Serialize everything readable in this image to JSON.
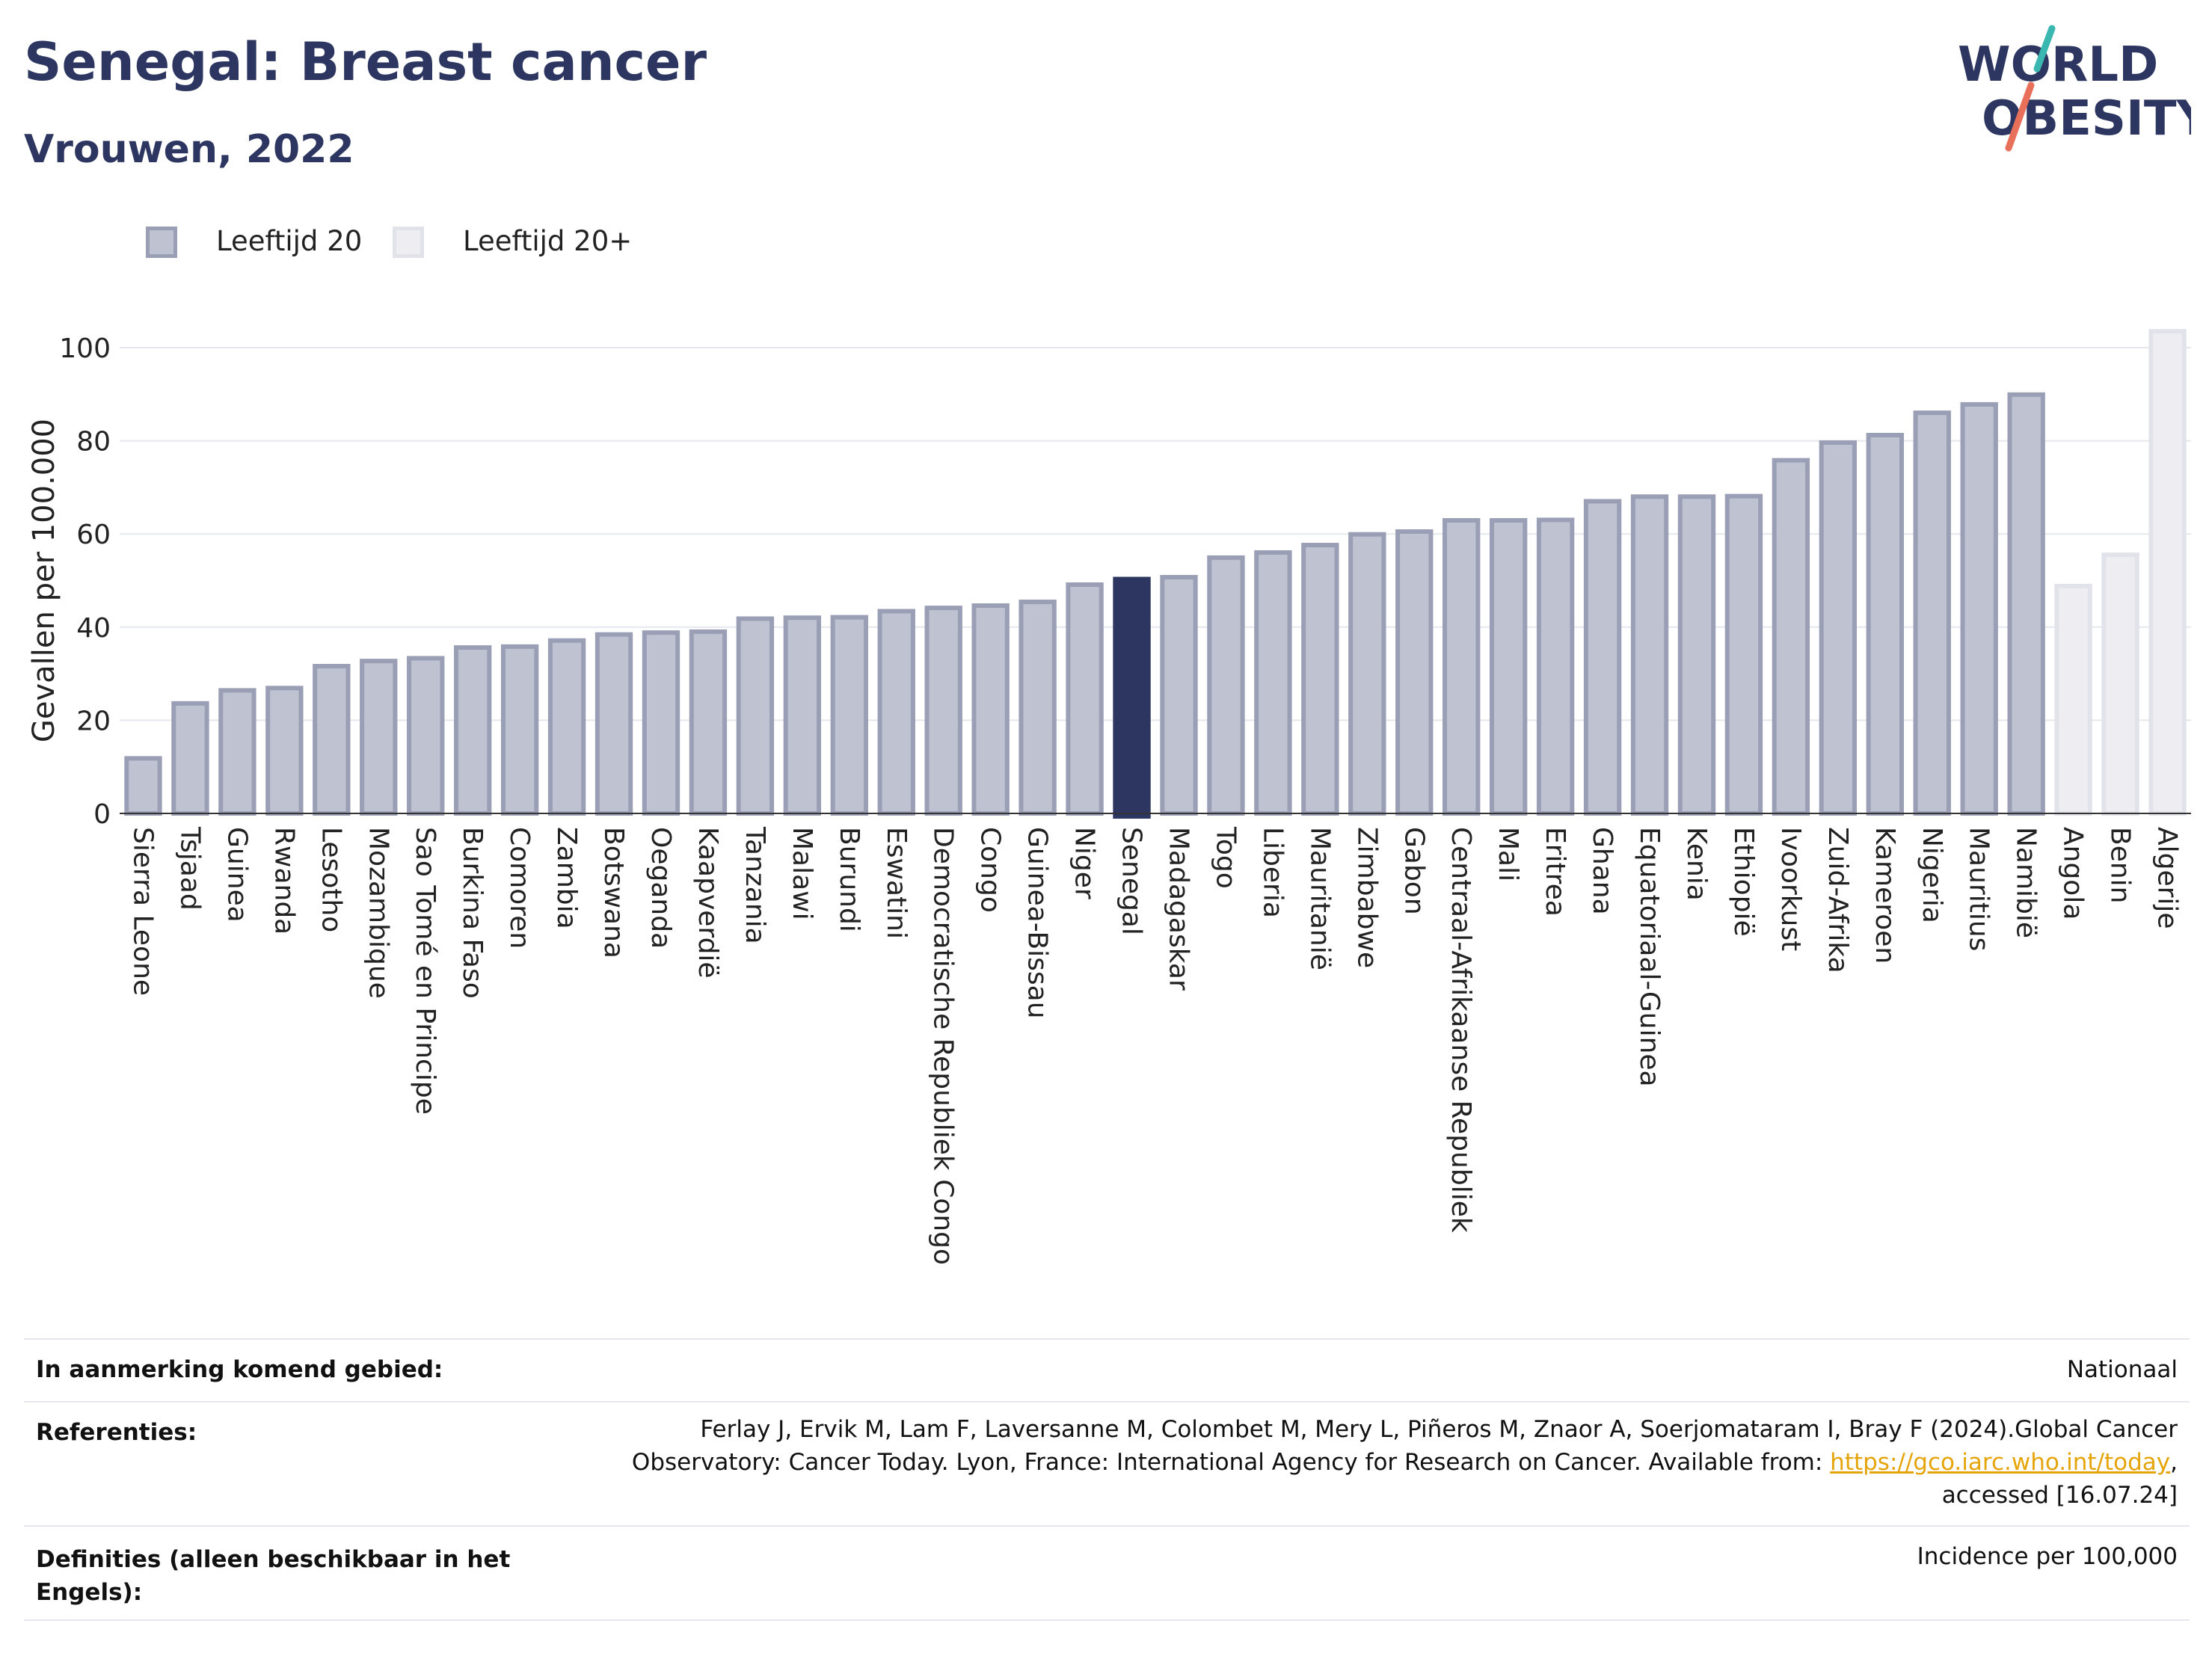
{
  "header": {
    "title": "Senegal: Breast cancer",
    "subtitle": "Vrouwen, 2022"
  },
  "logo": {
    "line1": "WORLD",
    "line2": "OBESITY",
    "accent1": "#3ab7b0",
    "accent2": "#e8705a"
  },
  "colors": {
    "bar_default": "#bfc2d0",
    "bar_default_border": "#9a9fb6",
    "bar_highlight": "#2c3660",
    "bar_light": "#eeeef2",
    "bar_light_border": "#e2e3ea",
    "text_dark": "#2c3660"
  },
  "legend": {
    "items": [
      {
        "label": "Leeftijd 20",
        "color": "#bfc2d0",
        "border": "#9a9fb6"
      },
      {
        "label": "Leeftijd 20+",
        "color": "#eeeef2",
        "border": "#e2e3ea"
      }
    ]
  },
  "chart_data": {
    "type": "bar",
    "ylabel": "Gevallen per 100.000",
    "ylim": [
      0,
      105
    ],
    "yticks": [
      0,
      20,
      40,
      60,
      80,
      100
    ],
    "grid": true,
    "highlight": "Senegal",
    "categories": [
      "Sierra Leone",
      "Tsjaad",
      "Guinea",
      "Rwanda",
      "Lesotho",
      "Mozambique",
      "Sao Tomé en Principe",
      "Burkina Faso",
      "Comoren",
      "Zambia",
      "Botswana",
      "Oeganda",
      "Kaapverdië",
      "Tanzania",
      "Malawi",
      "Burundi",
      "Eswatini",
      "Democratische Republiek Congo",
      "Congo",
      "Guinea-Bissau",
      "Niger",
      "Senegal",
      "Madagaskar",
      "Togo",
      "Liberia",
      "Mauritanië",
      "Zimbabwe",
      "Gabon",
      "Centraal-Afrikaanse Republiek",
      "Mali",
      "Eritrea",
      "Ghana",
      "Equatoriaal-Guinea",
      "Kenia",
      "Ethiopië",
      "Ivoorkust",
      "Zuid-Afrika",
      "Kameroen",
      "Nigeria",
      "Mauritius",
      "Namibië",
      "Angola",
      "Benin",
      "Algerije"
    ],
    "values": [
      12.3,
      24.1,
      26.9,
      27.4,
      32.1,
      33.2,
      33.8,
      36.1,
      36.3,
      37.6,
      38.9,
      39.3,
      39.5,
      42.3,
      42.5,
      42.6,
      43.9,
      44.6,
      45.1,
      45.9,
      49.6,
      50.8,
      51.2,
      55.4,
      56.5,
      58.1,
      60.4,
      61.0,
      63.4,
      63.4,
      63.5,
      67.5,
      68.5,
      68.5,
      68.6,
      76.3,
      80.1,
      81.7,
      86.5,
      88.3,
      90.4,
      49.3,
      56.0,
      104.0
    ],
    "age_groups": [
      "Leeftijd 20",
      "Leeftijd 20",
      "Leeftijd 20",
      "Leeftijd 20",
      "Leeftijd 20",
      "Leeftijd 20",
      "Leeftijd 20",
      "Leeftijd 20",
      "Leeftijd 20",
      "Leeftijd 20",
      "Leeftijd 20",
      "Leeftijd 20",
      "Leeftijd 20",
      "Leeftijd 20",
      "Leeftijd 20",
      "Leeftijd 20",
      "Leeftijd 20",
      "Leeftijd 20",
      "Leeftijd 20",
      "Leeftijd 20",
      "Leeftijd 20",
      "Leeftijd 20",
      "Leeftijd 20",
      "Leeftijd 20",
      "Leeftijd 20",
      "Leeftijd 20",
      "Leeftijd 20",
      "Leeftijd 20",
      "Leeftijd 20",
      "Leeftijd 20",
      "Leeftijd 20",
      "Leeftijd 20",
      "Leeftijd 20",
      "Leeftijd 20",
      "Leeftijd 20",
      "Leeftijd 20",
      "Leeftijd 20",
      "Leeftijd 20",
      "Leeftijd 20",
      "Leeftijd 20",
      "Leeftijd 20",
      "Leeftijd 20+",
      "Leeftijd 20+",
      "Leeftijd 20+"
    ]
  },
  "footer": {
    "rows": [
      {
        "label": "In aanmerking komend gebied:",
        "value": "Nationaal"
      },
      {
        "label": "Referenties:",
        "value_line1": "Ferlay J, Ervik M, Lam F, Laversanne M, Colombet M, Mery L, Piñeros M, Znaor A, Soerjomataram I, Bray F (2024).Global Cancer",
        "value_line2_prefix": "Observatory: Cancer Today. Lyon, France: International Agency for Research on Cancer. Available from: ",
        "link": "https://gco.iarc.who.int/today",
        "value_line2_suffix": ",",
        "value_line3": "accessed [16.07.24]"
      },
      {
        "label_line1": "Definities (alleen beschikbaar in het",
        "label_line2": "Engels):",
        "value": "Incidence per 100,000"
      }
    ]
  }
}
